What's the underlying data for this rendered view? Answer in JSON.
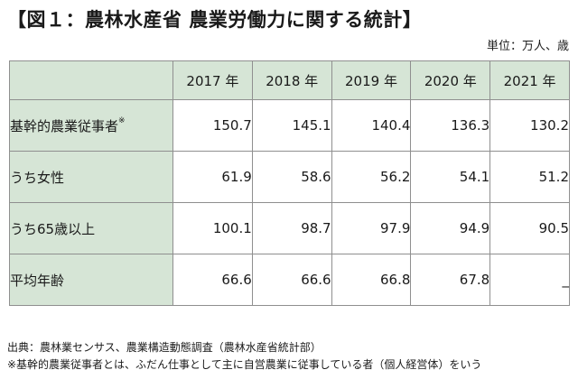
{
  "title": "【図１：農林水産省 農業労働力に関する統計】",
  "unit": "単位：万人、歳",
  "table": {
    "years": [
      "2017 年",
      "2018 年",
      "2019 年",
      "2020 年",
      "2021 年"
    ],
    "rows": [
      {
        "label": "基幹的農業従事者",
        "mark": "※",
        "values": [
          "150.7",
          "145.1",
          "140.4",
          "136.3",
          "130.2"
        ]
      },
      {
        "label": "うち女性",
        "mark": "",
        "values": [
          "61.9",
          "58.6",
          "56.2",
          "54.1",
          "51.2"
        ]
      },
      {
        "label": "うち65歳以上",
        "mark": "",
        "values": [
          "100.1",
          "98.7",
          "97.9",
          "94.9",
          "90.5"
        ]
      },
      {
        "label": "平均年齢",
        "mark": "",
        "values": [
          "66.6",
          "66.6",
          "66.8",
          "67.8",
          "_"
        ]
      }
    ]
  },
  "notes": {
    "source": "出典：農林業センサス、農業構造動態調査（農林水産省統計部）",
    "footnote": "※基幹的農業従事者とは、ふだん仕事として主に自営農業に従事している者（個人経営体）をいう"
  }
}
